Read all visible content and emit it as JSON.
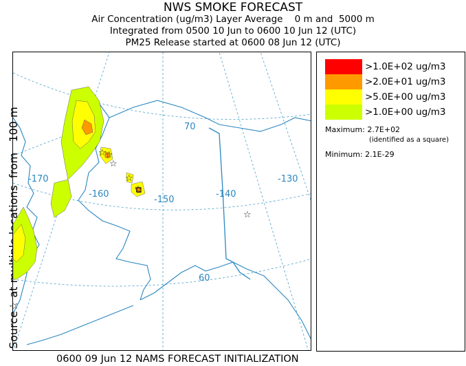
{
  "title": "NWS SMOKE FORECAST",
  "subtitle_lines": [
    "Air Concentration (ug/m3) Layer Average    0 m and  5000 m",
    "Integrated from 0500 10 Jun to 0600 10 Jun 12 (UTC)",
    "PM25 Release started at 0600 08 Jun 12 (UTC)"
  ],
  "side_label": "Source☆ at multiple locations  from   100 m",
  "footer": "0600 09 Jun 12 NAMS FORECAST INITIALIZATION",
  "map": {
    "longitude_labels": [
      "-170",
      "-160",
      "-150",
      "-140",
      "-130"
    ],
    "latitude_labels": [
      "70",
      "60"
    ],
    "source_marker": "☆"
  },
  "legend": {
    "items": [
      {
        "label": ">1.0E+02 ug/m3",
        "color": "#ff0000"
      },
      {
        "label": ">2.0E+01 ug/m3",
        "color": "#ff9900"
      },
      {
        "label": ">5.0E+00 ug/m3",
        "color": "#ffff00"
      },
      {
        "label": ">1.0E+00 ug/m3",
        "color": "#ccff00"
      }
    ],
    "maximum": "Maximum: 2.7E+02",
    "maximum_note": "(identified as a square)",
    "minimum": "Minimum: 2.1E-29"
  }
}
